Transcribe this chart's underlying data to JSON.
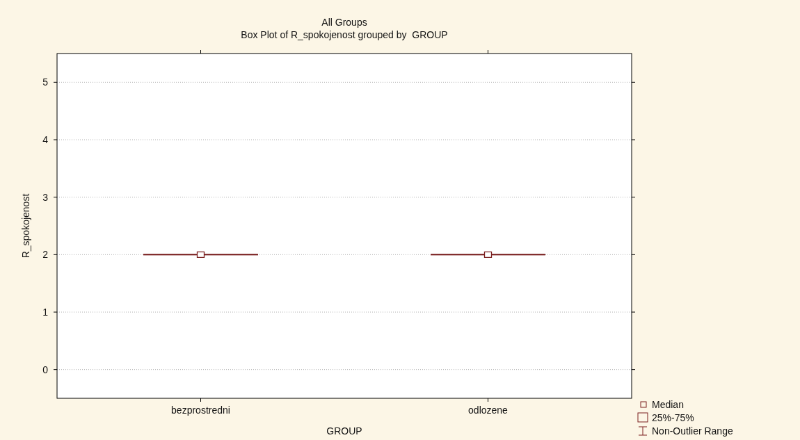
{
  "chart_data": {
    "type": "box",
    "title": "All Groups",
    "subtitle": "Box Plot of R_spokojenost grouped by  GROUP",
    "xlabel": "GROUP",
    "ylabel": "R_spokojenost",
    "categories": [
      "bezprostredni",
      "odlozene"
    ],
    "series": [
      {
        "color": "#7a1f1f",
        "boxes": [
          {
            "low": 2,
            "q1": 2,
            "median": 2,
            "q3": 2,
            "high": 2
          },
          {
            "low": 2,
            "q1": 2,
            "median": 2,
            "q3": 2,
            "high": 2
          }
        ]
      }
    ],
    "ylim": [
      -0.5,
      5.5
    ],
    "yticks": [
      0,
      1,
      2,
      3,
      4,
      5
    ],
    "grid": "y",
    "annotations": [
      "Median",
      "25%-75%",
      "Non-Outlier Range"
    ]
  }
}
